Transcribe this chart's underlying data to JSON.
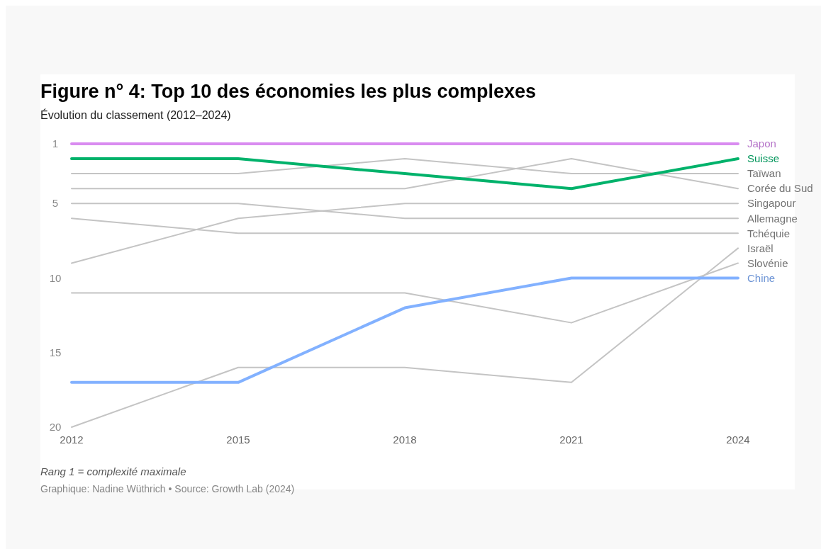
{
  "chart_data": {
    "type": "line",
    "title": "Figure n° 4: Top 10 des économies les plus complexes",
    "subtitle": "Évolution du classement (2012–2024)",
    "x": [
      2012,
      2015,
      2018,
      2021,
      2024
    ],
    "xlim": [
      2012,
      2024
    ],
    "xticks": [
      2012,
      2015,
      2018,
      2021,
      2024
    ],
    "ylim": [
      20,
      1
    ],
    "yticks": [
      1,
      5,
      10,
      15,
      20
    ],
    "grid": false,
    "legend": false,
    "series": [
      {
        "name": "Taïwan",
        "color": "#c4c4c4",
        "values": [
          3,
          3,
          2,
          3,
          3
        ]
      },
      {
        "name": "Corée du Sud",
        "color": "#c4c4c4",
        "values": [
          4,
          4,
          4,
          2,
          4
        ]
      },
      {
        "name": "Singapour",
        "color": "#c4c4c4",
        "values": [
          9,
          6,
          5,
          5,
          5
        ]
      },
      {
        "name": "Allemagne",
        "color": "#c4c4c4",
        "values": [
          5,
          5,
          6,
          6,
          6
        ]
      },
      {
        "name": "Tchéquie",
        "color": "#c4c4c4",
        "values": [
          6,
          7,
          7,
          7,
          7
        ]
      },
      {
        "name": "Israël",
        "color": "#c4c4c4",
        "values": [
          20,
          16,
          16,
          17,
          8
        ]
      },
      {
        "name": "Slovénie",
        "color": "#c4c4c4",
        "values": [
          11,
          11,
          11,
          13,
          9
        ]
      },
      {
        "name": "Chine",
        "color": "#82b1ff",
        "values": [
          17,
          17,
          12,
          10,
          10
        ]
      },
      {
        "name": "Suisse",
        "color": "#00b26b",
        "values": [
          2,
          2,
          3,
          4,
          2
        ]
      },
      {
        "name": "Japon",
        "color": "#d98cf0",
        "values": [
          1,
          1,
          1,
          1,
          1
        ]
      }
    ],
    "annotations": [
      "Rang 1 = complexité maximale",
      "Graphique: Nadine Wüthrich • Source: Growth Lab (2024)"
    ]
  }
}
